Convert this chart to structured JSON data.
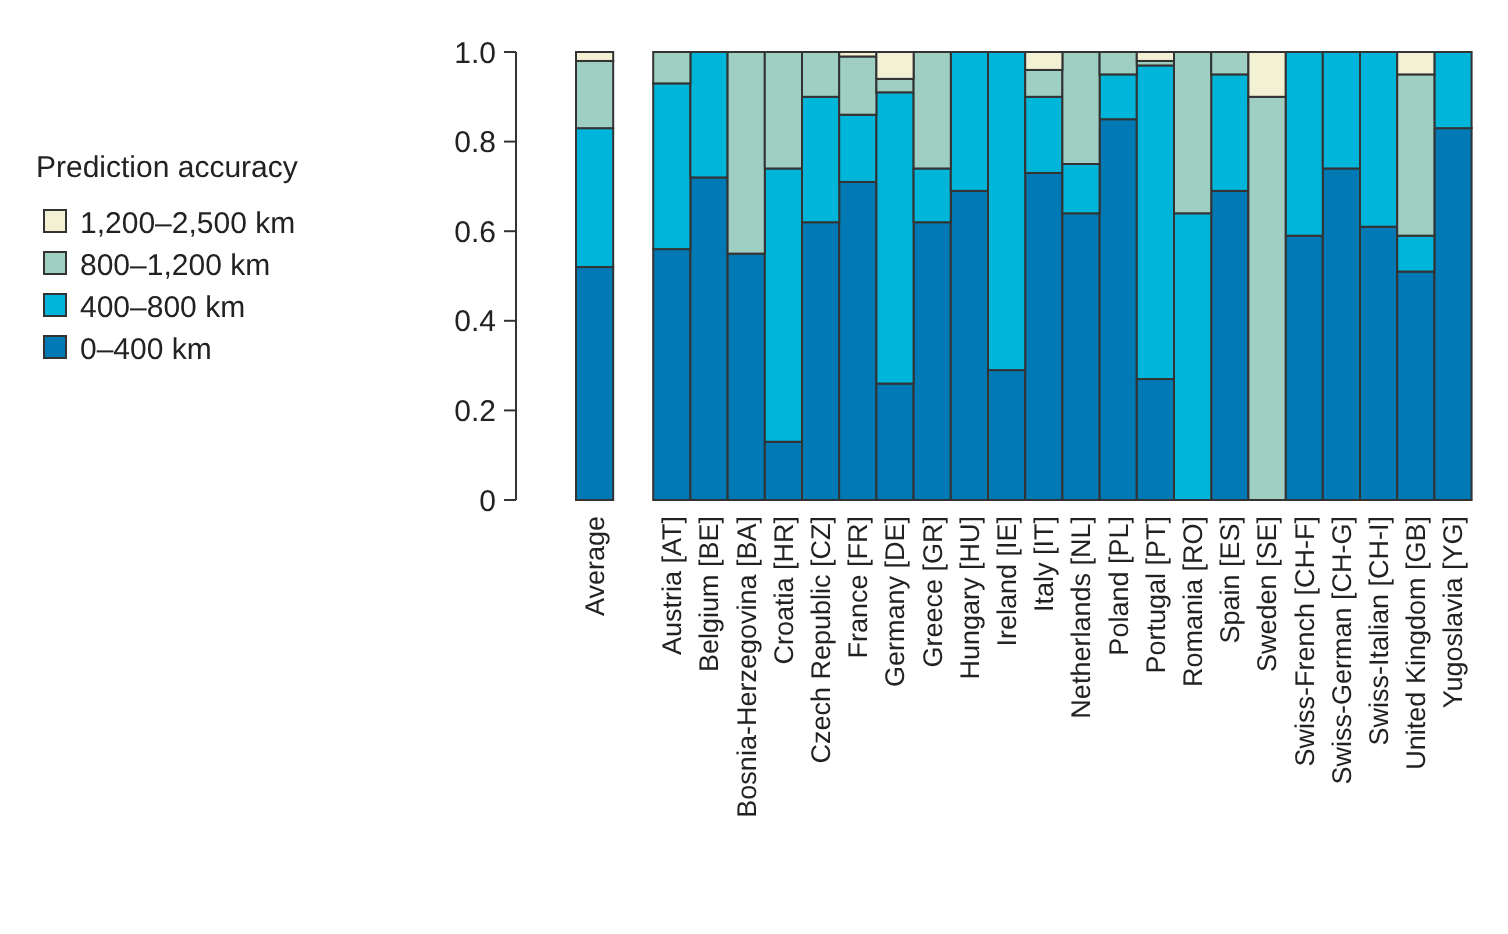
{
  "chart_data": {
    "type": "bar",
    "stacked": true,
    "categories": [
      "Average",
      "Austria [AT]",
      "Belgium [BE]",
      "Bosnia-Herzegovina [BA]",
      "Croatia [HR]",
      "Czech Republic [CZ]",
      "France [FR]",
      "Germany [DE]",
      "Greece [GR]",
      "Hungary [HU]",
      "Ireland [IE]",
      "Italy [IT]",
      "Netherlands [NL]",
      "Poland [PL]",
      "Portugal [PT]",
      "Romania [RO]",
      "Spain [ES]",
      "Sweden [SE]",
      "Swiss-French [CH-F]",
      "Swiss-German [CH-G]",
      "Swiss-Italian [CH-I]",
      "United Kingdom [GB]",
      "Yugoslavia [YG]"
    ],
    "series": [
      {
        "name": "0–400 km",
        "color": "#0079b5",
        "values": [
          0.52,
          0.56,
          0.72,
          0.55,
          0.13,
          0.62,
          0.71,
          0.26,
          0.62,
          0.69,
          0.29,
          0.73,
          0.64,
          0.85,
          0.27,
          0,
          0.69,
          0,
          0.59,
          0.74,
          0.61,
          0.51,
          0.83
        ]
      },
      {
        "name": "400–800 km",
        "color": "#00b5da",
        "values": [
          0.31,
          0.37,
          0.28,
          0,
          0.61,
          0.28,
          0.15,
          0.65,
          0.12,
          0.31,
          0.71,
          0.17,
          0.11,
          0.1,
          0.7,
          0.64,
          0.26,
          0,
          0.41,
          0.26,
          0.39,
          0.08,
          0.17
        ]
      },
      {
        "name": "800–1,200 km",
        "color": "#9fcfc3",
        "values": [
          0.15,
          0.07,
          0,
          0.45,
          0.26,
          0.1,
          0.13,
          0.03,
          0.26,
          0,
          0,
          0.06,
          0.25,
          0.05,
          0.01,
          0.36,
          0.05,
          0.9,
          0,
          0,
          0,
          0.36,
          0
        ]
      },
      {
        "name": "1,200–2,500 km",
        "color": "#f3f1d3",
        "values": [
          0.02,
          0,
          0,
          0,
          0,
          0,
          0.01,
          0.06,
          0,
          0,
          0,
          0.04,
          0,
          0,
          0.02,
          0,
          0,
          0.1,
          0,
          0,
          0,
          0.05,
          0
        ]
      }
    ],
    "ylim": [
      0,
      1
    ],
    "yticks": [
      0,
      0.2,
      0.4,
      0.6,
      0.8,
      {
        "value": 1,
        "label": "1.0"
      }
    ],
    "legend": "left",
    "legend_title": "Prediction accuracy",
    "grid": false
  }
}
